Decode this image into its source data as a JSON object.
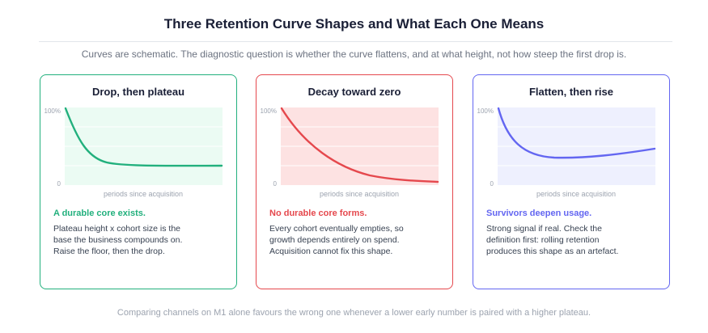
{
  "title": "Three Retention Curve Shapes and What Each One Means",
  "subtitle": "Curves are schematic. The diagnostic question is whether the curve flattens, and at what height, not how steep the first drop is.",
  "footer": "Comparing channels on M1 alone favours the wrong one whenever a lower early number is paired with a higher plateau.",
  "panels": [
    {
      "title": "Drop, then plateau",
      "color": "#22b07d",
      "fill": "#ebfbf3",
      "y_top_label": "100%",
      "y_bottom_label": "0",
      "x_label": "periods since acquisition",
      "verdict": "A durable core exists.",
      "lines": [
        "Plateau height x cohort size is the",
        "base the business compounds on.",
        "Raise the floor, then the drop."
      ]
    },
    {
      "title": "Decay toward zero",
      "color": "#e5484d",
      "fill": "#fde2e2",
      "y_top_label": "100%",
      "y_bottom_label": "0",
      "x_label": "periods since acquisition",
      "verdict": "No durable core forms.",
      "lines": [
        "Every cohort eventually empties, so",
        "growth depends entirely on spend.",
        "Acquisition cannot fix this shape."
      ]
    },
    {
      "title": "Flatten, then rise",
      "color": "#6366f1",
      "fill": "#eef0fe",
      "y_top_label": "100%",
      "y_bottom_label": "0",
      "x_label": "periods since acquisition",
      "verdict": "Survivors deepen usage.",
      "lines": [
        "Strong signal if real. Check the",
        "definition first: rolling retention",
        "produces this shape as an artefact."
      ]
    }
  ]
}
